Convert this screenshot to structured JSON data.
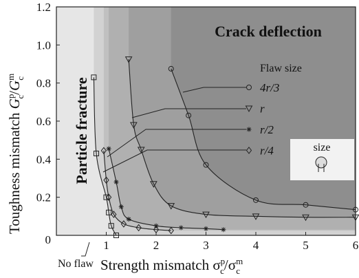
{
  "chart_data": {
    "type": "line",
    "x_label": [
      "Strength mismatch  σ",
      "p",
      "c",
      "/σ",
      "m",
      "c"
    ],
    "y_label": [
      "Toughness mismatch  ",
      "G",
      "p",
      "c",
      "/",
      "G",
      "m",
      "c"
    ],
    "xlim": [
      0,
      6
    ],
    "ylim": [
      0,
      1.2
    ],
    "xticks": [
      1,
      2,
      3,
      4,
      5,
      6
    ],
    "yticks": [
      0,
      0.2,
      0.4,
      0.6,
      0.8,
      {
        "value": 1,
        "label": "1.0"
      },
      1.2
    ],
    "base_color": "#e6e6e6",
    "annotations": {
      "region_top": "Crack deflection",
      "region_left": "Particle fracture",
      "legend_title": "Flaw size",
      "inset": "size"
    },
    "series": [
      {
        "name": "No flaw",
        "marker": "square",
        "color": "#222",
        "region_color": "#d2d2d2",
        "x": [
          0.75,
          0.8,
          1.0,
          1.05,
          1.1,
          1.2
        ],
        "values": [
          0.83,
          0.43,
          0.2,
          0.12,
          0.05,
          0.0
        ]
      },
      {
        "name": "r/4",
        "marker": "diamond",
        "color": "#222",
        "region_color": "#c0c0c0",
        "x": [
          0.95,
          1.0,
          1.05,
          1.15,
          1.35,
          1.65,
          2.0,
          2.3
        ],
        "values": [
          0.445,
          0.29,
          0.2,
          0.11,
          0.06,
          0.04,
          0.03,
          0.025
        ]
      },
      {
        "name": "r/2",
        "marker": "asterisk",
        "color": "#222",
        "region_color": "#b0b0b0",
        "x": [
          1.05,
          1.2,
          1.3,
          1.45,
          2.0,
          2.5,
          3.0,
          3.35
        ],
        "values": [
          0.455,
          0.28,
          0.15,
          0.085,
          0.05,
          0.04,
          0.035,
          0.03
        ]
      },
      {
        "name": "r",
        "marker": "triangle",
        "color": "#222",
        "region_color": "#9f9f9f",
        "x": [
          1.45,
          1.55,
          1.7,
          1.95,
          2.3,
          3.0,
          4.0,
          5.0,
          6.0
        ],
        "values": [
          0.925,
          0.58,
          0.45,
          0.27,
          0.155,
          0.11,
          0.1,
          0.095,
          0.095
        ]
      },
      {
        "name": "4r/3",
        "marker": "circle",
        "color": "#222",
        "region_color": "#8e8e8e",
        "x": [
          2.3,
          2.65,
          3.0,
          4.0,
          5.0,
          6.0
        ],
        "values": [
          0.875,
          0.63,
          0.37,
          0.185,
          0.16,
          0.135
        ]
      }
    ]
  }
}
